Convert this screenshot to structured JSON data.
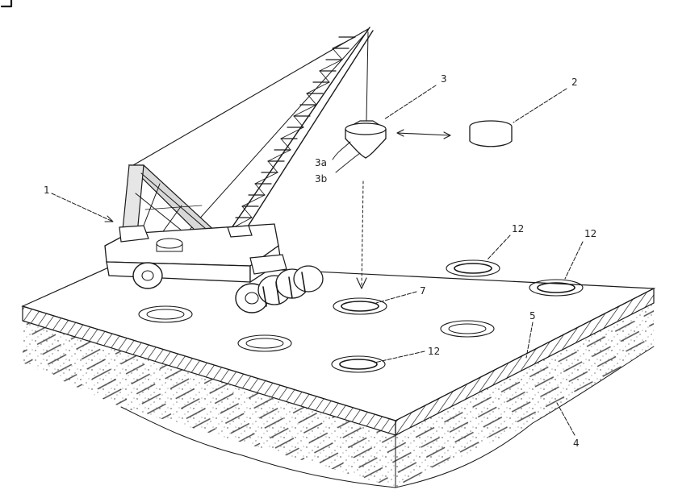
{
  "figure": {
    "labels": {
      "crane": "1",
      "cylinder": "2",
      "weight": "3",
      "weight_upper": "3a",
      "weight_lower": "3b",
      "sublayer": "4",
      "ground_layer": "5",
      "target_pit": "7",
      "pit_a": "12",
      "pit_b": "12",
      "pit_c": "12"
    },
    "colors": {
      "ink": "#1a1a1a",
      "paper": "#ffffff"
    }
  }
}
